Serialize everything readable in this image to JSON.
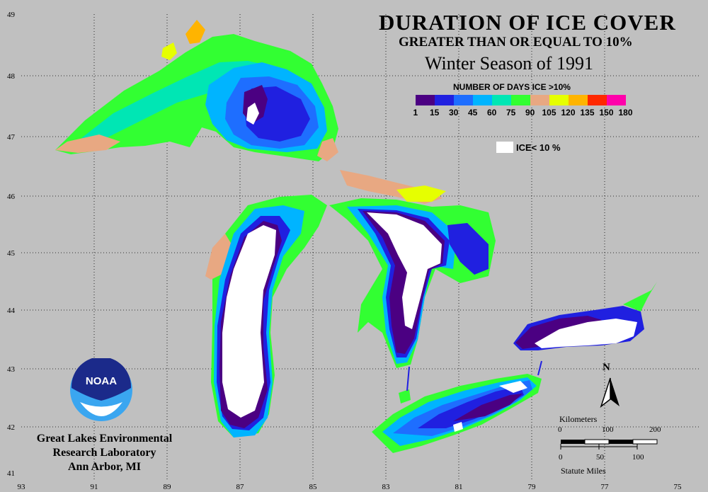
{
  "title": {
    "main": "DURATION OF ICE COVER",
    "sub": "GREATER THAN OR EQUAL TO 10%",
    "season": "Winter Season of 1991"
  },
  "legend": {
    "title": "NUMBER OF DAYS ICE >10%",
    "swatch_colors": [
      "#4b0082",
      "#2020e0",
      "#1e6eff",
      "#00b4ff",
      "#00e6b4",
      "#32ff32",
      "#e8a882",
      "#e6ff00",
      "#ffb400",
      "#ff2800",
      "#ff00aa"
    ],
    "labels": [
      "1",
      "15",
      "30",
      "45",
      "60",
      "75",
      "90",
      "105",
      "120",
      "135",
      "150",
      "180"
    ],
    "low_ice_color": "#ffffff",
    "low_ice_label": "ICE< 10 %"
  },
  "axes": {
    "longitude_labels": [
      "93",
      "91",
      "89",
      "87",
      "85",
      "83",
      "81",
      "79",
      "77",
      "75"
    ],
    "latitude_labels": [
      "49",
      "48",
      "47",
      "46",
      "45",
      "44",
      "43",
      "42",
      "41"
    ]
  },
  "colors": {
    "background": "#c0c0c0",
    "grid": "#000000",
    "noaa_dark": "#1b2a8a",
    "noaa_light": "#3aa6f0"
  },
  "organization": {
    "logo_text": "NOAA",
    "line1": "Great Lakes Environmental",
    "line2": "Research Laboratory",
    "line3": "Ann Arbor, MI"
  },
  "north": {
    "label": "N"
  },
  "scale": {
    "km_title": "Kilometers",
    "km_values": [
      "0",
      "100",
      "200"
    ],
    "mi_values": [
      "0",
      "50",
      "100"
    ],
    "mi_title": "Statute Miles"
  },
  "icons": [
    "noaa-logo-icon",
    "north-arrow-icon"
  ]
}
